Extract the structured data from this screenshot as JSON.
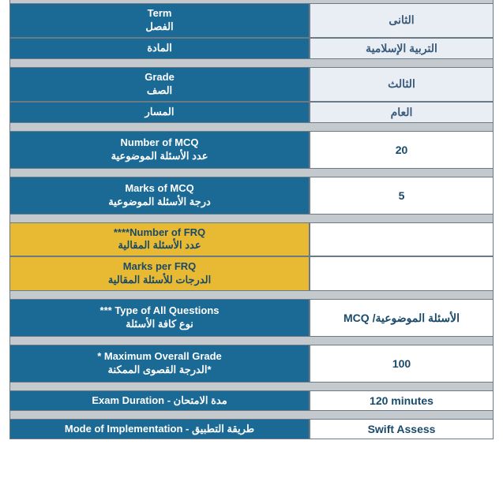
{
  "colors": {
    "header_bg": "#1a6a95",
    "header_text": "#ffffff",
    "yellow_bg": "#e8b933",
    "yellow_text": "#1a4a6a",
    "value_bg": "#ffffff",
    "value_light_bg": "#e8eef3",
    "value_text": "#1a4a6a",
    "border": "#6b7a85",
    "spacer": "#c4c9cd"
  },
  "rows": [
    {
      "type": "dual-header",
      "label_en": "Term",
      "label_ar": "الفصل",
      "value": "الثانى",
      "value_light": true
    },
    {
      "type": "single-header",
      "label_ar": "المادة",
      "value": "التربية الإسلامية",
      "value_light": true
    },
    {
      "type": "spacer"
    },
    {
      "type": "dual-header",
      "label_en": "Grade",
      "label_ar": "الصف",
      "value": "الثالث",
      "value_light": true
    },
    {
      "type": "single-header",
      "label_ar": "المسار",
      "value": "العام",
      "value_light": true
    },
    {
      "type": "spacer"
    },
    {
      "type": "dual-header-tall",
      "label_en": "Number of MCQ",
      "label_ar": "عدد الأسئلة الموضوعية",
      "value": "20"
    },
    {
      "type": "spacer"
    },
    {
      "type": "dual-header-tall",
      "label_en": "Marks of MCQ",
      "label_ar": "درجة الأسئلة الموضوعية",
      "value": "5"
    },
    {
      "type": "spacer"
    },
    {
      "type": "dual-header-yellow",
      "label_en": "****Number of FRQ",
      "label_ar": "عدد الأسئلة المقالية",
      "value": ""
    },
    {
      "type": "dual-header-yellow",
      "label_en": "Marks per FRQ",
      "label_ar": "الدرجات للأسئلة المقالية",
      "value": ""
    },
    {
      "type": "spacer"
    },
    {
      "type": "dual-header-tall",
      "label_en": "*** Type of All Questions",
      "label_ar": "نوع كافة الأسئلة",
      "value": "الأسئلة الموضوعية/ MCQ"
    },
    {
      "type": "spacer"
    },
    {
      "type": "dual-header-tall",
      "label_en": "* Maximum Overall Grade",
      "label_ar": "*الدرجة القصوى الممكنة",
      "value": "100"
    },
    {
      "type": "spacer"
    },
    {
      "type": "single-mixed",
      "label": "Exam Duration - مدة الامتحان",
      "value": "120 minutes"
    },
    {
      "type": "spacer"
    },
    {
      "type": "single-mixed",
      "label": "Mode of Implementation - طريقة التطبيق",
      "value": "Swift Assess"
    }
  ]
}
